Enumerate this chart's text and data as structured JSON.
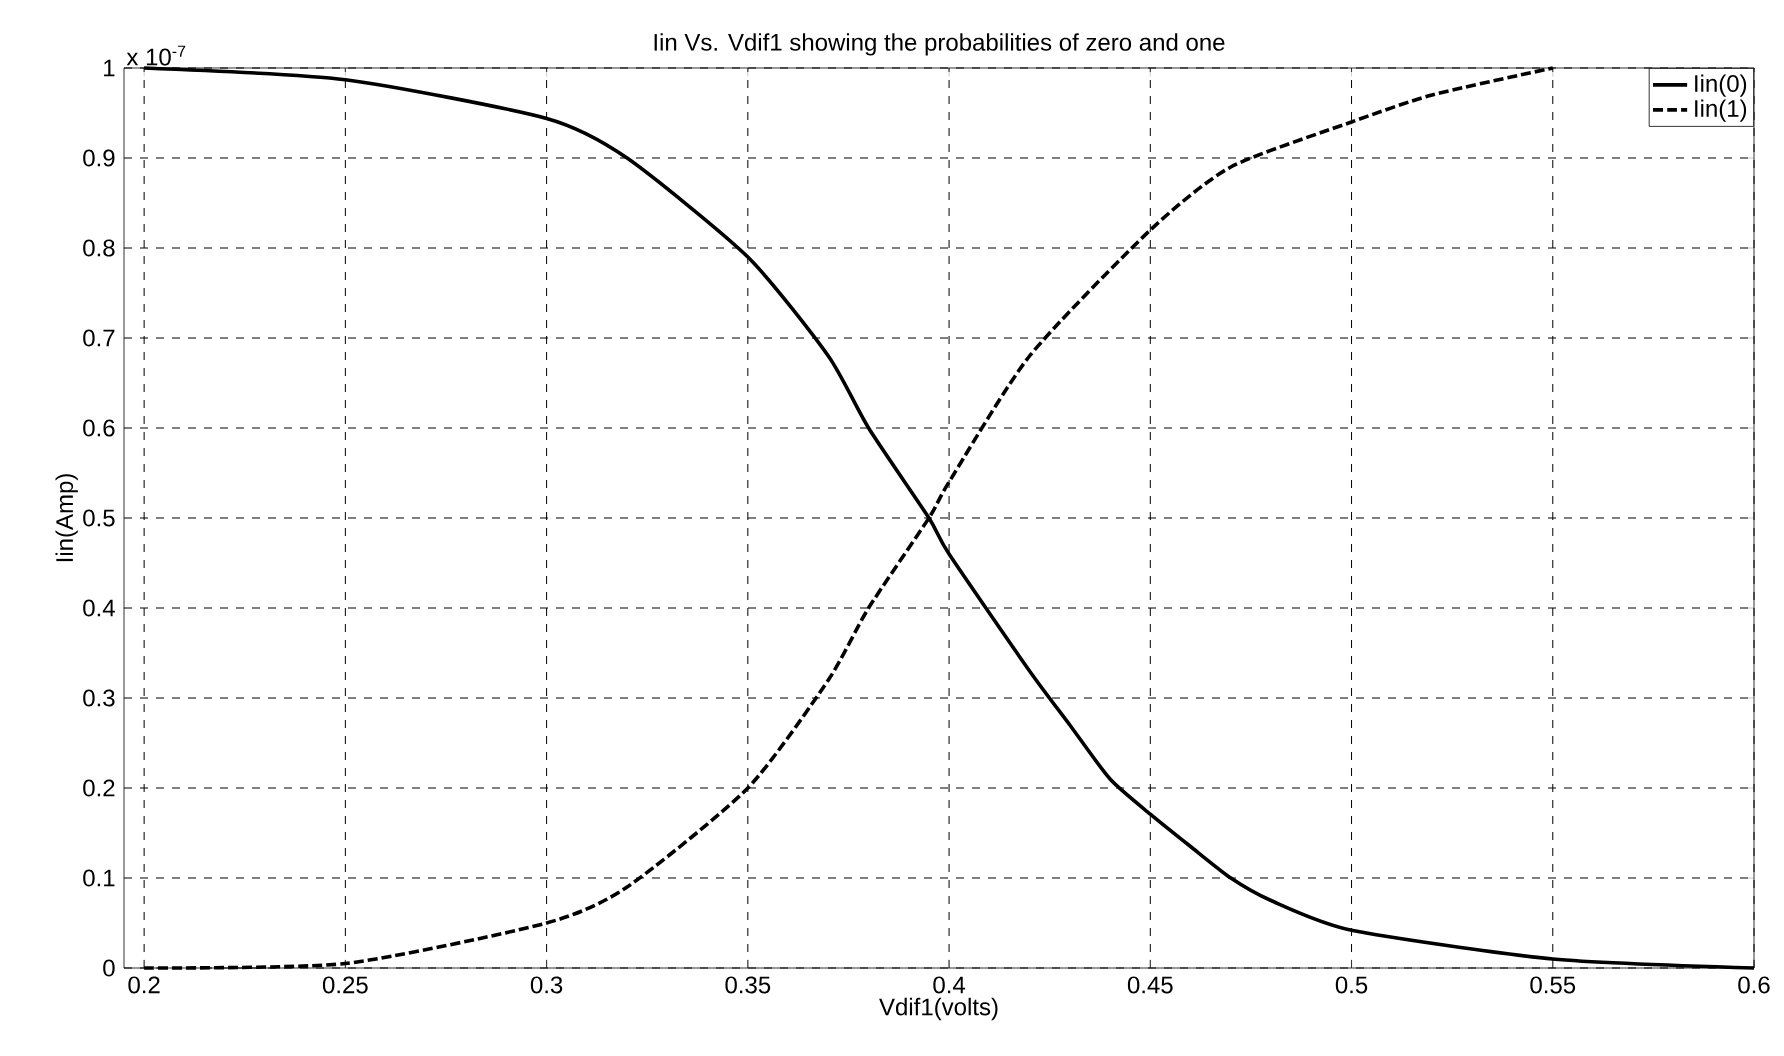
{
  "chart_data": {
    "type": "line",
    "title": "Iin Vs. Vdif1 showing the probabilities of zero and one",
    "xlabel": "Vdif1(volts)",
    "ylabel": "Iin(Amp)",
    "annotations": [
      "x 10$^{-7}$"
    ],
    "series": [
      {
        "name": "Iin(0)",
        "color": "#000000",
        "line_style": "solid",
        "x": [
          0.2,
          0.25,
          0.3,
          0.32,
          0.35,
          0.37,
          0.38,
          0.395,
          0.4,
          0.42,
          0.43,
          0.44,
          0.45,
          0.46,
          0.47,
          0.48,
          0.5,
          0.55,
          0.6
        ],
        "values": [
          1.0,
          0.987,
          0.944,
          0.9,
          0.79,
          0.68,
          0.6,
          0.5,
          0.46,
          0.33,
          0.27,
          0.21,
          0.171,
          0.135,
          0.1,
          0.075,
          0.042,
          0.01,
          0.0
        ]
      },
      {
        "name": "Iin(1)",
        "color": "#000000",
        "line_style": "dashed",
        "x": [
          0.2,
          0.25,
          0.3,
          0.32,
          0.35,
          0.37,
          0.38,
          0.395,
          0.4,
          0.42,
          0.45,
          0.47,
          0.5,
          0.52,
          0.55
        ],
        "values": [
          0.0,
          0.005,
          0.05,
          0.09,
          0.2,
          0.32,
          0.4,
          0.5,
          0.54,
          0.68,
          0.82,
          0.89,
          0.94,
          0.97,
          1.0
        ]
      }
    ],
    "xlim": [
      0.195,
      0.6
    ],
    "ylim": [
      0,
      1
    ],
    "xticks": [
      0.2,
      0.25,
      0.3,
      0.35,
      0.4,
      0.45,
      0.5,
      0.55,
      0.6
    ],
    "yticks": [
      0,
      0.1,
      0.2,
      0.3,
      0.4,
      0.5,
      0.6,
      0.7,
      0.8,
      0.9,
      1
    ],
    "grid": true,
    "legend": "top right"
  }
}
